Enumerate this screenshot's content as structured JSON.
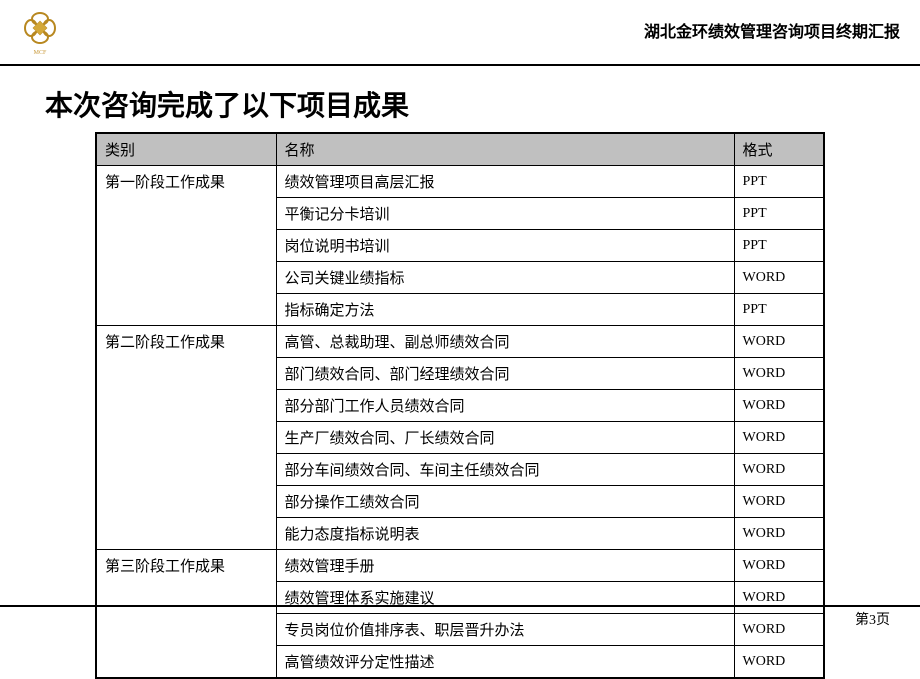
{
  "header": {
    "logo_label": "MCF",
    "right_text": "湖北金环绩效管理咨询项目终期汇报"
  },
  "title": "本次咨询完成了以下项目成果",
  "table": {
    "headers": {
      "category": "类别",
      "name": "名称",
      "format": "格式"
    },
    "groups": [
      {
        "category": "第一阶段工作成果",
        "rows": [
          {
            "name": "绩效管理项目高层汇报",
            "format": "PPT"
          },
          {
            "name": "平衡记分卡培训",
            "format": "PPT"
          },
          {
            "name": "岗位说明书培训",
            "format": "PPT"
          },
          {
            "name": "公司关键业绩指标",
            "format": "WORD"
          },
          {
            "name": "指标确定方法",
            "format": "PPT"
          }
        ]
      },
      {
        "category": "第二阶段工作成果",
        "rows": [
          {
            "name": "高管、总裁助理、副总师绩效合同",
            "format": "WORD"
          },
          {
            "name": "部门绩效合同、部门经理绩效合同",
            "format": "WORD"
          },
          {
            "name": "部分部门工作人员绩效合同",
            "format": "WORD"
          },
          {
            "name": "生产厂绩效合同、厂长绩效合同",
            "format": "WORD"
          },
          {
            "name": "部分车间绩效合同、车间主任绩效合同",
            "format": "WORD"
          },
          {
            "name": "部分操作工绩效合同",
            "format": "WORD"
          },
          {
            "name": "能力态度指标说明表",
            "format": "WORD"
          }
        ]
      },
      {
        "category": "第三阶段工作成果",
        "rows": [
          {
            "name": "绩效管理手册",
            "format": "WORD"
          },
          {
            "name": "绩效管理体系实施建议",
            "format": "WORD"
          },
          {
            "name": "专员岗位价值排序表、职层晋升办法",
            "format": "WORD"
          },
          {
            "name": "高管绩效评分定性描述",
            "format": "WORD"
          }
        ]
      }
    ]
  },
  "footer": {
    "page": "第3页"
  },
  "colors": {
    "logo_gold": "#d4a838",
    "header_gray": "#c0c0c0",
    "border_black": "#000000",
    "text_black": "#000000",
    "background": "#ffffff"
  }
}
